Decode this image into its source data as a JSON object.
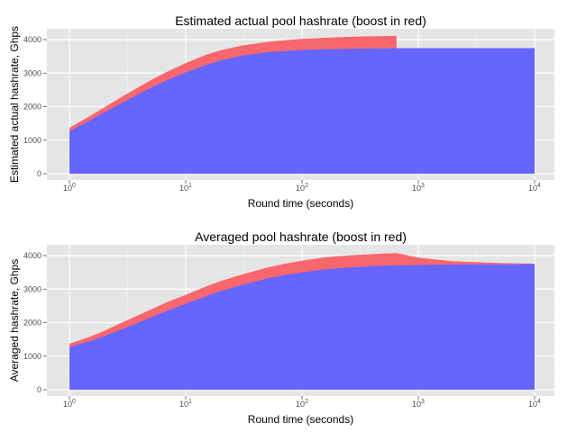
{
  "chart_data": [
    {
      "type": "area",
      "title": "Estimated actual pool hashrate (boost in red)",
      "xlabel": "Round time (seconds)",
      "ylabel": "Estimated actual hashrate, Ghps",
      "x_scale": "log10",
      "xlim": [
        1,
        10000
      ],
      "ylim": [
        0,
        4200
      ],
      "grid": true,
      "x_ticks": [
        {
          "value": 1,
          "base": "10",
          "exp": "0"
        },
        {
          "value": 10,
          "base": "10",
          "exp": "1"
        },
        {
          "value": 100,
          "base": "10",
          "exp": "2"
        },
        {
          "value": 1000,
          "base": "10",
          "exp": "3"
        },
        {
          "value": 10000,
          "base": "10",
          "exp": "4"
        }
      ],
      "y_ticks": [
        {
          "value": 0,
          "label": "0"
        },
        {
          "value": 1000,
          "label": "1000"
        },
        {
          "value": 2000,
          "label": "2000"
        },
        {
          "value": 3000,
          "label": "3000"
        },
        {
          "value": 4000,
          "label": "4000"
        }
      ],
      "series": [
        {
          "color": "#6666ff",
          "x": [
            1,
            1.5,
            2,
            3,
            5,
            7,
            10,
            15,
            20,
            30,
            50,
            70,
            100,
            150,
            200,
            300,
            500,
            650,
            1000,
            3000,
            10000
          ],
          "y": [
            1270,
            1590,
            1830,
            2160,
            2560,
            2800,
            3020,
            3250,
            3380,
            3520,
            3620,
            3660,
            3690,
            3710,
            3720,
            3730,
            3740,
            3745,
            3745,
            3745,
            3745
          ]
        },
        {
          "color": "#f8676d",
          "x": [
            1,
            1.5,
            2,
            3,
            5,
            7,
            10,
            15,
            20,
            30,
            50,
            70,
            100,
            150,
            200,
            300,
            500,
            650
          ],
          "y": [
            1370,
            1720,
            1980,
            2350,
            2790,
            3050,
            3300,
            3550,
            3680,
            3820,
            3930,
            3980,
            4020,
            4050,
            4070,
            4090,
            4105,
            4110
          ]
        }
      ]
    },
    {
      "type": "area",
      "title": "Averaged pool hashrate (boost in red)",
      "xlabel": "Round time (seconds)",
      "ylabel": "Averaged hashrate, Ghps",
      "x_scale": "log10",
      "xlim": [
        1,
        10000
      ],
      "ylim": [
        0,
        4200
      ],
      "grid": true,
      "x_ticks": [
        {
          "value": 1,
          "base": "10",
          "exp": "0"
        },
        {
          "value": 10,
          "base": "10",
          "exp": "1"
        },
        {
          "value": 100,
          "base": "10",
          "exp": "2"
        },
        {
          "value": 1000,
          "base": "10",
          "exp": "3"
        },
        {
          "value": 10000,
          "base": "10",
          "exp": "4"
        }
      ],
      "y_ticks": [
        {
          "value": 0,
          "label": "0"
        },
        {
          "value": 1000,
          "label": "1000"
        },
        {
          "value": 2000,
          "label": "2000"
        },
        {
          "value": 3000,
          "label": "3000"
        },
        {
          "value": 4000,
          "label": "4000"
        }
      ],
      "series": [
        {
          "color": "#6666ff",
          "x": [
            1,
            1.5,
            2,
            3,
            5,
            7,
            10,
            15,
            20,
            30,
            50,
            70,
            100,
            150,
            200,
            300,
            500,
            650,
            1000,
            2000,
            5000,
            10000
          ],
          "y": [
            1270,
            1450,
            1600,
            1840,
            2150,
            2360,
            2560,
            2790,
            2940,
            3120,
            3320,
            3420,
            3500,
            3580,
            3620,
            3660,
            3700,
            3710,
            3720,
            3735,
            3740,
            3745
          ]
        },
        {
          "color": "#f8676d",
          "x": [
            1,
            1.5,
            2,
            3,
            5,
            7,
            10,
            15,
            20,
            30,
            50,
            70,
            100,
            150,
            200,
            300,
            500,
            650,
            1000,
            2000,
            5000,
            10000
          ],
          "y": [
            1370,
            1580,
            1760,
            2040,
            2390,
            2620,
            2830,
            3080,
            3240,
            3430,
            3640,
            3750,
            3850,
            3940,
            3980,
            4020,
            4060,
            4075,
            3940,
            3830,
            3780,
            3760
          ]
        }
      ]
    }
  ]
}
